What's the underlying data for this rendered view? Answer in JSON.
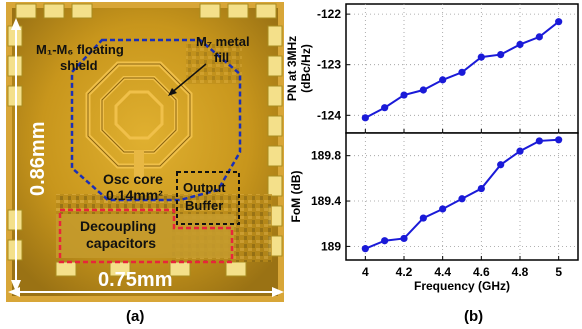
{
  "panel_a": {
    "caption": "(a)",
    "labels": {
      "shield_line1": "M₁-M₆ floating",
      "shield_line2": "shield",
      "fill_line1": "M₇ metal",
      "fill_line2": "fill",
      "osc_line1": "Osc core",
      "osc_line2": "0.14mm²",
      "buffer_line1": "Output",
      "buffer_line2": "Buffer",
      "decap_line1": "Decoupling",
      "decap_line2": "capacitors",
      "height": "0.86mm",
      "width": "0.75mm"
    },
    "colors": {
      "shield_box": "#1a2fb8",
      "decap_box": "#e8253a",
      "buffer_box": "#111111",
      "die_gold": "#c8961c",
      "label_text": "#111111",
      "dim_text": "#ffffff"
    }
  },
  "panel_b": {
    "caption": "(b)"
  },
  "chart_data": [
    {
      "type": "line",
      "ylabel_line1": "PN at 3MHz",
      "ylabel_line2": "(dBc/Hz)",
      "x": [
        4.0,
        4.1,
        4.2,
        4.3,
        4.4,
        4.5,
        4.6,
        4.7,
        4.8,
        4.9,
        5.0
      ],
      "series": [
        {
          "values": [
            -124.05,
            -123.85,
            -123.6,
            -123.5,
            -123.3,
            -123.15,
            -122.85,
            -122.8,
            -122.6,
            -122.45,
            -122.15
          ],
          "color": "#1a1ad8"
        }
      ],
      "ylim": [
        -124.35,
        -121.8
      ],
      "xlim": [
        3.9,
        5.1
      ],
      "yticks": [
        -124,
        -123,
        -122
      ],
      "yticklabels": [
        "-124",
        "-123",
        "-122"
      ],
      "grid": true,
      "marker": "circle"
    },
    {
      "type": "line",
      "ylabel": "FoM (dB)",
      "xlabel": "Frequency (GHz)",
      "x": [
        4.0,
        4.1,
        4.2,
        4.3,
        4.4,
        4.5,
        4.6,
        4.7,
        4.8,
        4.9,
        5.0
      ],
      "series": [
        {
          "values": [
            188.98,
            189.05,
            189.07,
            189.25,
            189.33,
            189.42,
            189.51,
            189.72,
            189.84,
            189.93,
            189.94
          ],
          "color": "#1a1ad8"
        }
      ],
      "ylim": [
        188.88,
        190.0
      ],
      "xlim": [
        3.9,
        5.1
      ],
      "yticks": [
        189.0,
        189.4,
        189.8
      ],
      "yticklabels": [
        "189",
        "189.4",
        "189.8"
      ],
      "xticks": [
        4.0,
        4.2,
        4.4,
        4.6,
        4.8,
        5.0
      ],
      "xticklabels": [
        "4",
        "4.2",
        "4.4",
        "4.6",
        "4.8",
        "5"
      ],
      "grid": true,
      "marker": "circle"
    }
  ]
}
